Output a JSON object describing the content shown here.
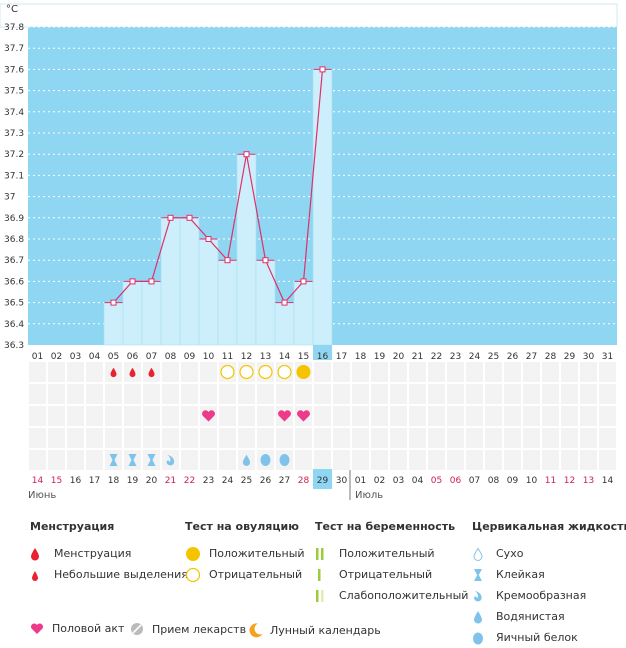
{
  "chart_data": {
    "type": "bar",
    "title": "",
    "ylabel": "°C",
    "ylim": [
      36.3,
      37.8
    ],
    "yticks": [
      "36.3",
      "36.4",
      "36.5",
      "36.6",
      "36.7",
      "36.8",
      "36.9",
      "37",
      "37.1",
      "37.2",
      "37.3",
      "37.4",
      "37.5",
      "37.6",
      "37.7",
      "37.8"
    ],
    "cycle_days": [
      "01",
      "02",
      "03",
      "04",
      "05",
      "06",
      "07",
      "08",
      "09",
      "10",
      "11",
      "12",
      "13",
      "14",
      "15",
      "16",
      "17",
      "18",
      "19",
      "20",
      "21",
      "22",
      "23",
      "24",
      "25",
      "26",
      "27",
      "28",
      "29",
      "30",
      "31"
    ],
    "highlighted_cycle_day": "16",
    "temperatures": [
      null,
      null,
      null,
      null,
      36.5,
      36.6,
      36.6,
      36.9,
      36.9,
      36.8,
      36.7,
      37.2,
      36.7,
      36.5,
      36.6,
      37.6,
      null,
      null,
      null,
      null,
      null,
      null,
      null,
      null,
      null,
      null,
      null,
      null,
      null,
      null,
      null
    ],
    "dates": [
      "14",
      "15",
      "16",
      "17",
      "18",
      "19",
      "20",
      "21",
      "22",
      "23",
      "24",
      "25",
      "26",
      "27",
      "28",
      "29",
      "30",
      "01",
      "02",
      "03",
      "04",
      "05",
      "06",
      "07",
      "08",
      "09",
      "10",
      "11",
      "12",
      "13",
      "14"
    ],
    "weekend_dates": [
      true,
      true,
      false,
      false,
      false,
      false,
      false,
      true,
      true,
      false,
      false,
      false,
      false,
      false,
      true,
      false,
      false,
      false,
      false,
      false,
      false,
      true,
      true,
      false,
      false,
      false,
      false,
      true,
      true,
      true,
      false
    ],
    "highlighted_date": "29",
    "months": [
      "Июнь",
      "Июль"
    ],
    "menstruation": [
      null,
      null,
      null,
      null,
      "light",
      "light",
      "light",
      null,
      null,
      null,
      null,
      null,
      null,
      null,
      null,
      null,
      null,
      null,
      null,
      null,
      null,
      null,
      null,
      null,
      null,
      null,
      null,
      null,
      null,
      null,
      null
    ],
    "ovulation_test": [
      null,
      null,
      null,
      null,
      null,
      null,
      null,
      null,
      null,
      null,
      "negative",
      "negative",
      "negative",
      "negative",
      "positive",
      null,
      null,
      null,
      null,
      null,
      null,
      null,
      null,
      null,
      null,
      null,
      null,
      null,
      null,
      null,
      null
    ],
    "intercourse": [
      null,
      null,
      null,
      null,
      null,
      null,
      null,
      null,
      null,
      "yes",
      null,
      null,
      null,
      "yes",
      "yes",
      null,
      null,
      null,
      null,
      null,
      null,
      null,
      null,
      null,
      null,
      null,
      null,
      null,
      null,
      null,
      null
    ],
    "cervical_fluid": [
      null,
      null,
      null,
      null,
      "sticky",
      "sticky",
      "sticky",
      "creamy",
      null,
      null,
      null,
      "watery",
      "eggwhite",
      "eggwhite",
      null,
      null,
      null,
      null,
      null,
      null,
      null,
      null,
      null,
      null,
      null,
      null,
      null,
      null,
      null,
      null,
      null
    ]
  },
  "legend": {
    "menstruation": {
      "title": "Менструация",
      "items": [
        {
          "label": "Менструация",
          "icon": "drop-large-icon"
        },
        {
          "label": "Небольшие выделения",
          "icon": "drop-small-icon"
        }
      ]
    },
    "ovulation": {
      "title": "Тест на овуляцию",
      "items": [
        {
          "label": "Положительный",
          "icon": "circle-filled-icon"
        },
        {
          "label": "Отрицательный",
          "icon": "circle-outline-icon"
        }
      ]
    },
    "pregnancy": {
      "title": "Тест на беременность",
      "items": [
        {
          "label": "Положительный",
          "icon": "double-bar-icon"
        },
        {
          "label": "Отрицательный",
          "icon": "single-bar-icon"
        },
        {
          "label": "Слабоположительный",
          "icon": "weak-bar-icon"
        }
      ]
    },
    "cervical": {
      "title": "Цервикальная жидкость",
      "items": [
        {
          "label": "Сухо",
          "icon": "dry-drop-icon"
        },
        {
          "label": "Клейкая",
          "icon": "sticky-icon"
        },
        {
          "label": "Кремообразная",
          "icon": "creamy-icon"
        },
        {
          "label": "Водянистая",
          "icon": "watery-icon"
        },
        {
          "label": "Яичный белок",
          "icon": "eggwhite-icon"
        }
      ]
    },
    "misc": [
      {
        "label": "Половой акт",
        "icon": "heart-icon"
      },
      {
        "label": "Прием лекарств",
        "icon": "pill-icon"
      },
      {
        "label": "Лунный календарь",
        "icon": "moon-icon"
      }
    ]
  },
  "colors": {
    "plot_bg": "#8fd6f2",
    "bar": "#cdeefb",
    "line": "#e0306a",
    "weekend": "#d0204e",
    "highlight": "#8fd6f2",
    "grid": "#ffffff",
    "circle": "#f5c400",
    "heart": "#ee3a8a",
    "drop_red": "#e8222f",
    "drop_blue": "#7fc3ec"
  }
}
